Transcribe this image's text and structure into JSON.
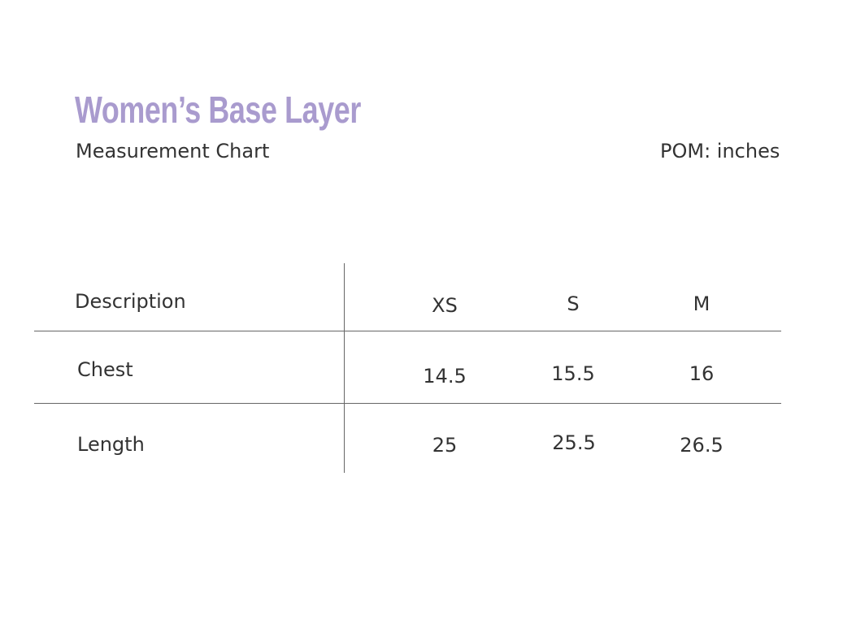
{
  "title": "Women’s Base Layer",
  "subtitle": "Measurement Chart",
  "unit_note": "POM: inches",
  "title_color": "#a99bce",
  "table": {
    "header": [
      "Description",
      "XS",
      "S",
      "M"
    ],
    "rows": [
      [
        "Chest",
        "14.5",
        "15.5",
        "16"
      ],
      [
        "Length",
        "25",
        "25.5",
        "26.5"
      ]
    ]
  }
}
